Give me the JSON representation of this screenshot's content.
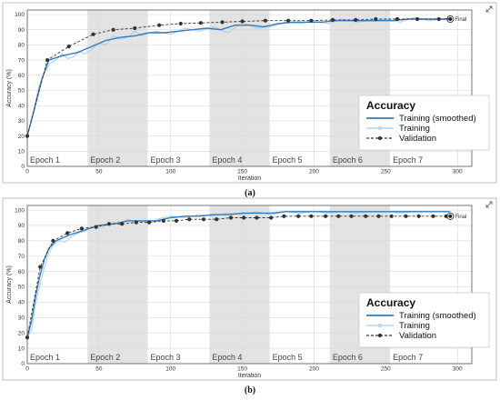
{
  "chart_data": [
    {
      "type": "line",
      "panel": "(a)",
      "caption": "(a)",
      "xlabel": "Iteration",
      "ylabel": "Accuracy (%)",
      "xlim": [
        0,
        310
      ],
      "ylim": [
        0,
        103
      ],
      "xticks": [
        0,
        50,
        100,
        150,
        200,
        250,
        300
      ],
      "yticks": [
        0,
        10,
        20,
        30,
        40,
        50,
        60,
        70,
        80,
        90,
        100
      ],
      "grid": true,
      "legend_position": "bottom-right",
      "legend_title": "Accuracy",
      "epochs": [
        {
          "label": "Epoch 1",
          "start": 0,
          "end": 42
        },
        {
          "label": "Epoch 2",
          "start": 42,
          "end": 84
        },
        {
          "label": "Epoch 3",
          "start": 84,
          "end": 127
        },
        {
          "label": "Epoch 4",
          "start": 127,
          "end": 169
        },
        {
          "label": "Epoch 5",
          "start": 169,
          "end": 211
        },
        {
          "label": "Epoch 6",
          "start": 211,
          "end": 253
        },
        {
          "label": "Epoch 7",
          "start": 253,
          "end": 295
        }
      ],
      "final_label": "Final",
      "series": [
        {
          "name": "Training (smoothed)",
          "color": "#2f7dbf",
          "x": [
            0,
            5,
            10,
            15,
            25,
            35,
            45,
            55,
            65,
            75,
            85,
            95,
            105,
            115,
            125,
            135,
            145,
            155,
            165,
            175,
            185,
            195,
            205,
            215,
            225,
            235,
            245,
            255,
            265,
            275,
            285,
            295
          ],
          "y": [
            20,
            38,
            57,
            70,
            73,
            75,
            79,
            83,
            85,
            86,
            88,
            88,
            89,
            90,
            91,
            90,
            93,
            93,
            92,
            94,
            95,
            95,
            95,
            96,
            96,
            96,
            96,
            96,
            97,
            97,
            97,
            97
          ]
        },
        {
          "name": "Training",
          "color": "#a9cce3",
          "x": [
            0,
            4,
            8,
            12,
            16,
            20,
            24,
            28,
            32,
            36,
            40,
            45,
            50,
            55,
            60,
            65,
            70,
            75,
            80,
            85,
            90,
            100,
            110,
            120,
            130,
            140,
            150,
            160,
            170,
            180,
            190,
            200,
            210,
            220,
            230,
            240,
            250,
            260,
            270,
            280,
            290,
            295
          ],
          "y": [
            20,
            35,
            52,
            62,
            68,
            70,
            74,
            71,
            72,
            76,
            74,
            77,
            81,
            80,
            86,
            84,
            85,
            89,
            86,
            88,
            89,
            87,
            91,
            89,
            92,
            88,
            95,
            91,
            92,
            95,
            94,
            96,
            94,
            97,
            95,
            96,
            97,
            95,
            98,
            96,
            97,
            98
          ]
        },
        {
          "name": "Validation",
          "color": "#333333",
          "x": [
            0,
            14,
            29,
            46,
            60,
            75,
            92,
            107,
            121,
            136,
            150,
            166,
            182,
            198,
            213,
            229,
            243,
            258,
            272,
            287,
            295
          ],
          "y": [
            20,
            70,
            79,
            87,
            90,
            91,
            93,
            94,
            94.5,
            95,
            95.5,
            96,
            96,
            96,
            96.5,
            96.5,
            97,
            97,
            97,
            97,
            97
          ]
        }
      ]
    },
    {
      "type": "line",
      "panel": "(b)",
      "caption": "(b)",
      "xlabel": "Iteration",
      "ylabel": "Accuracy (%)",
      "xlim": [
        0,
        310
      ],
      "ylim": [
        0,
        103
      ],
      "xticks": [
        0,
        50,
        100,
        150,
        200,
        250,
        300
      ],
      "yticks": [
        0,
        10,
        20,
        30,
        40,
        50,
        60,
        70,
        80,
        90,
        100
      ],
      "grid": true,
      "legend_position": "bottom-right",
      "legend_title": "Accuracy",
      "epochs": [
        {
          "label": "Epoch 1",
          "start": 0,
          "end": 42
        },
        {
          "label": "Epoch 2",
          "start": 42,
          "end": 84
        },
        {
          "label": "Epoch 3",
          "start": 84,
          "end": 127
        },
        {
          "label": "Epoch 4",
          "start": 127,
          "end": 169
        },
        {
          "label": "Epoch 5",
          "start": 169,
          "end": 211
        },
        {
          "label": "Epoch 6",
          "start": 211,
          "end": 253
        },
        {
          "label": "Epoch 7",
          "start": 253,
          "end": 295
        }
      ],
      "final_label": "Final",
      "series": [
        {
          "name": "Training (smoothed)",
          "color": "#2f7dbf",
          "x": [
            0,
            3,
            6,
            9,
            12,
            15,
            20,
            25,
            30,
            40,
            50,
            60,
            70,
            80,
            90,
            100,
            110,
            120,
            130,
            140,
            150,
            160,
            170,
            180,
            190,
            200,
            220,
            240,
            260,
            280,
            295
          ],
          "y": [
            17,
            28,
            45,
            58,
            68,
            75,
            80,
            82,
            84,
            87,
            90,
            91,
            93,
            93,
            93,
            95,
            96,
            96,
            97,
            97,
            98,
            98,
            98,
            99,
            99,
            99,
            99,
            99,
            99,
            99,
            99
          ]
        },
        {
          "name": "Training",
          "color": "#a9cce3",
          "x": [
            0,
            3,
            6,
            9,
            12,
            15,
            18,
            22,
            26,
            30,
            35,
            40,
            45,
            50,
            55,
            60,
            65,
            70,
            75,
            80,
            85,
            90,
            100,
            110,
            120,
            130,
            140,
            150,
            160,
            170,
            180,
            190,
            200,
            210,
            220,
            230,
            240,
            250,
            260,
            270,
            280,
            290,
            295
          ],
          "y": [
            17,
            22,
            40,
            52,
            63,
            72,
            77,
            80,
            79,
            82,
            85,
            86,
            89,
            88,
            90,
            92,
            91,
            94,
            92,
            93,
            91,
            94,
            96,
            95,
            97,
            96,
            98,
            97,
            99,
            97,
            99,
            98,
            99,
            98,
            99,
            98,
            99,
            99,
            98,
            99,
            99,
            99,
            99
          ]
        },
        {
          "name": "Validation",
          "color": "#333333",
          "x": [
            0,
            9,
            18,
            28,
            38,
            48,
            57,
            66,
            76,
            85,
            95,
            104,
            113,
            123,
            132,
            142,
            151,
            160,
            170,
            179,
            189,
            198,
            208,
            217,
            226,
            236,
            245,
            254,
            264,
            273,
            283,
            292,
            295
          ],
          "y": [
            17,
            63,
            80,
            85,
            88,
            89,
            91,
            91,
            92,
            92,
            93,
            93,
            94,
            94,
            94,
            95,
            95,
            95,
            95,
            96,
            96,
            96,
            96,
            96,
            96,
            96,
            96,
            96,
            96,
            96,
            96,
            96,
            96
          ]
        }
      ]
    }
  ]
}
